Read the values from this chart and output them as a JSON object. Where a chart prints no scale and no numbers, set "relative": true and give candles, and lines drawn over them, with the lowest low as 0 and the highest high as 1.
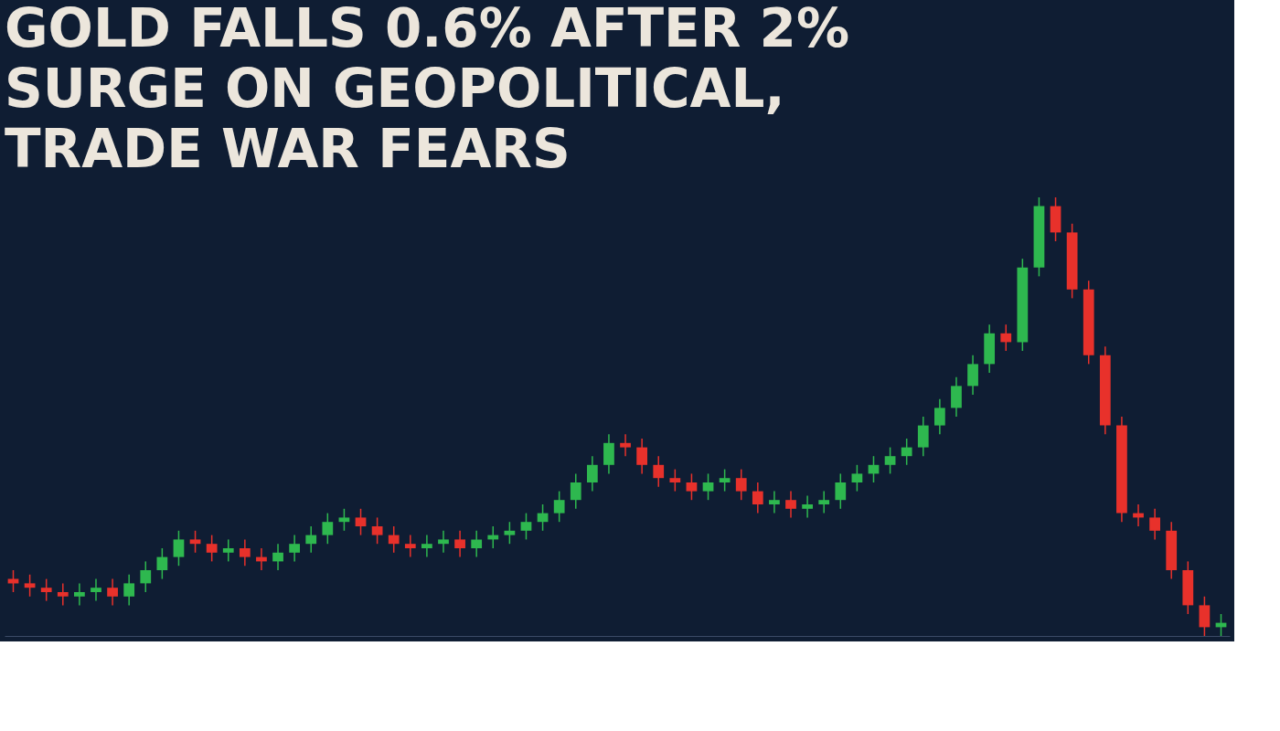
{
  "chart_data": {
    "type": "candlestick",
    "title": "GOLD FALLS 0.6% AFTER 2% SURGE ON GEOPOLITICAL, TRADE WAR FEARS",
    "relative": true,
    "tick_labels": false,
    "grid": false,
    "categories": [
      null,
      null,
      null,
      null,
      null,
      null,
      null,
      null,
      null,
      null,
      null,
      null,
      null,
      null,
      null,
      null,
      null,
      null,
      null,
      null,
      null,
      null,
      null,
      null,
      null,
      null,
      null,
      null,
      null,
      null,
      null,
      null,
      null,
      null,
      null,
      null,
      null,
      null,
      null,
      null,
      null,
      null,
      null,
      null,
      null,
      null,
      null,
      null,
      null,
      null,
      null,
      null,
      null,
      null,
      null,
      null,
      null,
      null,
      null,
      null,
      null,
      null,
      null,
      null,
      null,
      null,
      null,
      null,
      null,
      null,
      null,
      null,
      null,
      null
    ],
    "ohlc": [
      [
        0.13,
        0.15,
        0.1,
        0.12
      ],
      [
        0.12,
        0.14,
        0.09,
        0.11
      ],
      [
        0.11,
        0.13,
        0.08,
        0.1
      ],
      [
        0.1,
        0.12,
        0.07,
        0.09
      ],
      [
        0.09,
        0.12,
        0.07,
        0.1
      ],
      [
        0.1,
        0.13,
        0.08,
        0.11
      ],
      [
        0.11,
        0.13,
        0.07,
        0.09
      ],
      [
        0.09,
        0.14,
        0.07,
        0.12
      ],
      [
        0.12,
        0.17,
        0.1,
        0.15
      ],
      [
        0.15,
        0.2,
        0.13,
        0.18
      ],
      [
        0.18,
        0.24,
        0.16,
        0.22
      ],
      [
        0.22,
        0.24,
        0.19,
        0.21
      ],
      [
        0.21,
        0.23,
        0.17,
        0.19
      ],
      [
        0.19,
        0.22,
        0.17,
        0.2
      ],
      [
        0.2,
        0.22,
        0.16,
        0.18
      ],
      [
        0.18,
        0.2,
        0.15,
        0.17
      ],
      [
        0.17,
        0.21,
        0.15,
        0.19
      ],
      [
        0.19,
        0.23,
        0.17,
        0.21
      ],
      [
        0.21,
        0.25,
        0.19,
        0.23
      ],
      [
        0.23,
        0.28,
        0.21,
        0.26
      ],
      [
        0.26,
        0.29,
        0.24,
        0.27
      ],
      [
        0.27,
        0.29,
        0.23,
        0.25
      ],
      [
        0.25,
        0.27,
        0.21,
        0.23
      ],
      [
        0.23,
        0.25,
        0.19,
        0.21
      ],
      [
        0.21,
        0.23,
        0.18,
        0.2
      ],
      [
        0.2,
        0.23,
        0.18,
        0.21
      ],
      [
        0.21,
        0.24,
        0.19,
        0.22
      ],
      [
        0.22,
        0.24,
        0.18,
        0.2
      ],
      [
        0.2,
        0.24,
        0.18,
        0.22
      ],
      [
        0.22,
        0.25,
        0.2,
        0.23
      ],
      [
        0.23,
        0.26,
        0.21,
        0.24
      ],
      [
        0.24,
        0.28,
        0.22,
        0.26
      ],
      [
        0.26,
        0.3,
        0.24,
        0.28
      ],
      [
        0.28,
        0.33,
        0.26,
        0.31
      ],
      [
        0.31,
        0.37,
        0.29,
        0.35
      ],
      [
        0.35,
        0.41,
        0.33,
        0.39
      ],
      [
        0.39,
        0.46,
        0.37,
        0.44
      ],
      [
        0.44,
        0.46,
        0.41,
        0.43
      ],
      [
        0.43,
        0.45,
        0.37,
        0.39
      ],
      [
        0.39,
        0.41,
        0.34,
        0.36
      ],
      [
        0.36,
        0.38,
        0.33,
        0.35
      ],
      [
        0.35,
        0.37,
        0.31,
        0.33
      ],
      [
        0.33,
        0.37,
        0.31,
        0.35
      ],
      [
        0.35,
        0.38,
        0.33,
        0.36
      ],
      [
        0.36,
        0.38,
        0.31,
        0.33
      ],
      [
        0.33,
        0.35,
        0.28,
        0.3
      ],
      [
        0.3,
        0.33,
        0.28,
        0.31
      ],
      [
        0.31,
        0.33,
        0.27,
        0.29
      ],
      [
        0.29,
        0.32,
        0.27,
        0.3
      ],
      [
        0.3,
        0.33,
        0.28,
        0.31
      ],
      [
        0.31,
        0.37,
        0.29,
        0.35
      ],
      [
        0.35,
        0.39,
        0.33,
        0.37
      ],
      [
        0.37,
        0.41,
        0.35,
        0.39
      ],
      [
        0.39,
        0.43,
        0.37,
        0.41
      ],
      [
        0.41,
        0.45,
        0.39,
        0.43
      ],
      [
        0.43,
        0.5,
        0.41,
        0.48
      ],
      [
        0.48,
        0.54,
        0.46,
        0.52
      ],
      [
        0.52,
        0.59,
        0.5,
        0.57
      ],
      [
        0.57,
        0.64,
        0.55,
        0.62
      ],
      [
        0.62,
        0.71,
        0.6,
        0.69
      ],
      [
        0.69,
        0.71,
        0.65,
        0.67
      ],
      [
        0.67,
        0.86,
        0.65,
        0.84
      ],
      [
        0.84,
        1.0,
        0.82,
        0.98
      ],
      [
        0.98,
        1.0,
        0.9,
        0.92
      ],
      [
        0.92,
        0.94,
        0.77,
        0.79
      ],
      [
        0.79,
        0.81,
        0.62,
        0.64
      ],
      [
        0.64,
        0.66,
        0.46,
        0.48
      ],
      [
        0.48,
        0.5,
        0.26,
        0.28
      ],
      [
        0.28,
        0.3,
        0.25,
        0.27
      ],
      [
        0.27,
        0.29,
        0.22,
        0.24
      ],
      [
        0.24,
        0.26,
        0.13,
        0.15
      ],
      [
        0.15,
        0.17,
        0.05,
        0.07
      ],
      [
        0.07,
        0.09,
        0.0,
        0.02
      ],
      [
        0.02,
        0.05,
        0.0,
        0.03
      ]
    ],
    "colors": [
      "#e8312b",
      "#e8312b",
      "#e8312b",
      "#e8312b",
      "#2eb84f",
      "#2eb84f",
      "#e8312b",
      "#2eb84f",
      "#2eb84f",
      "#2eb84f",
      "#2eb84f",
      "#e8312b",
      "#e8312b",
      "#2eb84f",
      "#e8312b",
      "#e8312b",
      "#2eb84f",
      "#2eb84f",
      "#2eb84f",
      "#2eb84f",
      "#2eb84f",
      "#e8312b",
      "#e8312b",
      "#e8312b",
      "#e8312b",
      "#2eb84f",
      "#2eb84f",
      "#e8312b",
      "#2eb84f",
      "#2eb84f",
      "#2eb84f",
      "#2eb84f",
      "#2eb84f",
      "#2eb84f",
      "#2eb84f",
      "#2eb84f",
      "#2eb84f",
      "#e8312b",
      "#e8312b",
      "#e8312b",
      "#e8312b",
      "#e8312b",
      "#2eb84f",
      "#2eb84f",
      "#e8312b",
      "#e8312b",
      "#2eb84f",
      "#e8312b",
      "#2eb84f",
      "#2eb84f",
      "#2eb84f",
      "#2eb84f",
      "#2eb84f",
      "#2eb84f",
      "#2eb84f",
      "#2eb84f",
      "#2eb84f",
      "#2eb84f",
      "#2eb84f",
      "#2eb84f",
      "#e8312b",
      "#2eb84f",
      "#2eb84f",
      "#e8312b",
      "#e8312b",
      "#e8312b",
      "#e8312b",
      "#e8312b",
      "#e8312b",
      "#e8312b",
      "#e8312b",
      "#e8312b",
      "#e8312b",
      "#2eb84f"
    ]
  }
}
